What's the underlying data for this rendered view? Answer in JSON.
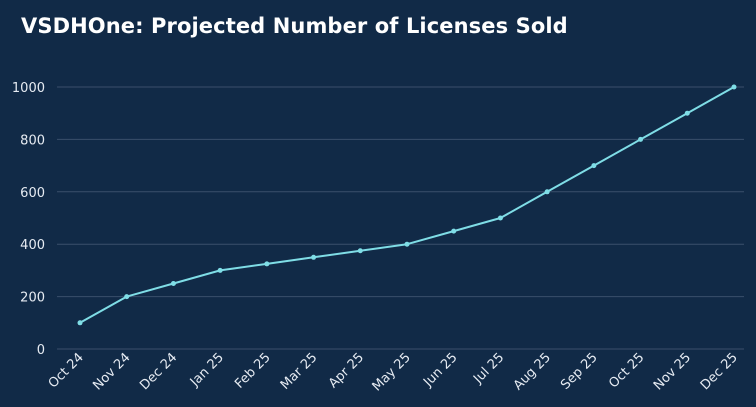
{
  "chart_data": {
    "type": "line",
    "title": "VSDHOne: Projected Number of Licenses Sold",
    "xlabel": "",
    "ylabel": "",
    "categories": [
      "Oct 24",
      "Nov 24",
      "Dec 24",
      "Jan 25",
      "Feb 25",
      "Mar 25",
      "Apr 25",
      "May 25",
      "Jun 25",
      "Jul 25",
      "Aug 25",
      "Sep 25",
      "Oct 25",
      "Nov 25",
      "Dec 25"
    ],
    "series": [
      {
        "values": [
          100,
          200,
          250,
          300,
          325,
          350,
          375,
          400,
          450,
          500,
          600,
          700,
          800,
          900,
          1000
        ]
      }
    ],
    "ylim": [
      0,
      1000
    ],
    "yticks": [
      0,
      200,
      400,
      600,
      800,
      1000
    ],
    "grid": true,
    "legend": "none",
    "colors": {
      "background": "#112a47",
      "line": "#7fdde6",
      "grid": "#3a4f6b",
      "text": "#e6ebf2",
      "title": "#ffffff"
    }
  }
}
